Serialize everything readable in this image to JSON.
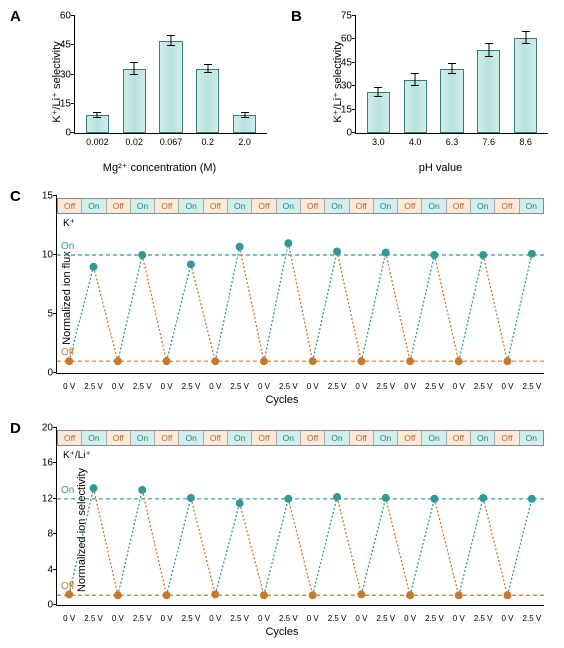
{
  "colors": {
    "bar_fill": "#b8e2df",
    "bar_border": "#3c7a7a",
    "on": "#2f9a95",
    "off": "#c77a2e",
    "off_cell_bg": "#fcead9",
    "on_cell_bg": "#d1efee",
    "axis": "#000000",
    "background": "#ffffff"
  },
  "panelA": {
    "label": "A",
    "type": "bar",
    "ylabel": "K⁺/Li⁺ selectivity",
    "xlabel": "Mg²⁺ concentration (M)",
    "ylim": [
      0,
      60
    ],
    "ytick_step": 15,
    "yticks": [
      0,
      15,
      30,
      45,
      60
    ],
    "categories": [
      "0.002",
      "0.02",
      "0.067",
      "0.2",
      "2.0"
    ],
    "values": [
      9,
      33,
      47,
      33,
      9
    ],
    "errors": [
      1.2,
      3,
      2.5,
      2,
      1.2
    ]
  },
  "panelB": {
    "label": "B",
    "type": "bar",
    "ylabel": "K⁺/Li⁺ selectivity",
    "xlabel": "pH value",
    "ylim": [
      0,
      75
    ],
    "ytick_step": 15,
    "yticks": [
      0,
      15,
      30,
      45,
      60,
      75
    ],
    "categories": [
      "3.0",
      "4.0",
      "6.3",
      "7.6",
      "8.6"
    ],
    "values": [
      26,
      34,
      41,
      53,
      61
    ],
    "errors": [
      3,
      4,
      3,
      4,
      4
    ]
  },
  "panelC": {
    "label": "C",
    "type": "line",
    "ylabel": "Normalized ion flux",
    "xlabel": "Cycles",
    "species_label": "K⁺",
    "on_label": "On",
    "off_label": "Off",
    "ylim": [
      0,
      15
    ],
    "ytick_step": 5,
    "yticks": [
      0,
      5,
      10,
      15
    ],
    "cycles": 10,
    "xtick_labels": [
      "0 V",
      "2.5 V"
    ],
    "state_labels": [
      "Off",
      "On",
      "Off",
      "On",
      "Off",
      "On",
      "Off",
      "On",
      "Off",
      "On",
      "Off",
      "On",
      "Off",
      "On",
      "Off",
      "On",
      "Off",
      "On",
      "Off",
      "On"
    ],
    "off_values": [
      1,
      1,
      1,
      1,
      1,
      1,
      1,
      1,
      1,
      1
    ],
    "on_values": [
      9,
      10,
      9.2,
      10.7,
      11,
      10.3,
      10.2,
      10,
      10,
      10.1
    ],
    "on_ref_line": 10,
    "off_ref_line": 1
  },
  "panelD": {
    "label": "D",
    "type": "line",
    "ylabel": "Normalized ion selectivity",
    "xlabel": "Cycles",
    "species_label": "K⁺/Li⁺",
    "on_label": "On",
    "off_label": "Off",
    "ylim": [
      0,
      20
    ],
    "ytick_step": 4,
    "yticks": [
      0,
      4,
      8,
      12,
      16,
      20
    ],
    "cycles": 10,
    "xtick_labels": [
      "0 V",
      "2.5 V"
    ],
    "state_labels": [
      "Off",
      "On",
      "Off",
      "On",
      "Off",
      "On",
      "Off",
      "On",
      "Off",
      "On",
      "Off",
      "On",
      "Off",
      "On",
      "Off",
      "On",
      "Off",
      "On",
      "Off",
      "On"
    ],
    "off_values": [
      1.2,
      1.1,
      1.1,
      1.2,
      1.1,
      1.1,
      1.2,
      1.1,
      1.1,
      1.1
    ],
    "on_values": [
      13.2,
      13,
      12.1,
      11.5,
      12,
      12.2,
      12.1,
      12,
      12.1,
      12
    ],
    "on_ref_line": 12,
    "off_ref_line": 1.1
  }
}
